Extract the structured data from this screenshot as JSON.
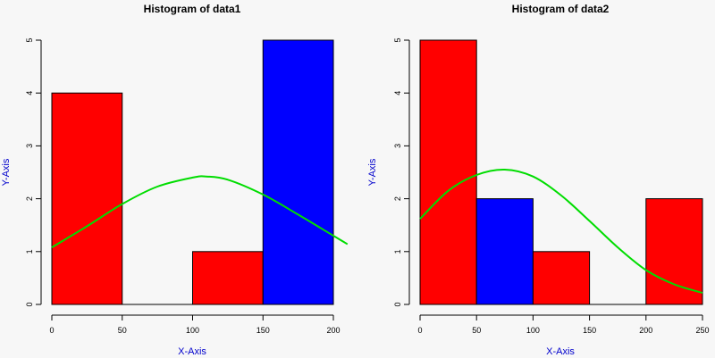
{
  "chart_data": [
    {
      "type": "bar",
      "title": "Histogram of data1",
      "xlabel": "X-Axis",
      "ylabel": "Y-Axis",
      "label_color": "#0000cc",
      "xlim": [
        0,
        200
      ],
      "ylim": [
        0,
        5
      ],
      "xticks": [
        0,
        50,
        100,
        150,
        200
      ],
      "yticks": [
        0,
        1,
        2,
        3,
        4,
        5
      ],
      "bins": [
        {
          "start": 0,
          "end": 50,
          "count": 4,
          "color": "#ff0000"
        },
        {
          "start": 50,
          "end": 100,
          "count": 0,
          "color": "#ff0000"
        },
        {
          "start": 100,
          "end": 150,
          "count": 1,
          "color": "#ff0000"
        },
        {
          "start": 150,
          "end": 200,
          "count": 5,
          "color": "#0000ff"
        }
      ],
      "curve": {
        "type": "line",
        "color": "#00dd00",
        "x": [
          0,
          25,
          50,
          75,
          100,
          110,
          125,
          150,
          175,
          200,
          210
        ],
        "y": [
          1.08,
          1.48,
          1.9,
          2.23,
          2.4,
          2.42,
          2.36,
          2.08,
          1.7,
          1.3,
          1.14
        ]
      }
    },
    {
      "type": "bar",
      "title": "Histogram of data2",
      "xlabel": "X-Axis",
      "ylabel": "Y-Axis",
      "label_color": "#0000cc",
      "xlim": [
        0,
        250
      ],
      "ylim": [
        0,
        5
      ],
      "xticks": [
        0,
        50,
        100,
        150,
        200,
        250
      ],
      "yticks": [
        0,
        1,
        2,
        3,
        4,
        5
      ],
      "bins": [
        {
          "start": 0,
          "end": 50,
          "count": 5,
          "color": "#ff0000"
        },
        {
          "start": 50,
          "end": 100,
          "count": 2,
          "color": "#0000ff"
        },
        {
          "start": 100,
          "end": 150,
          "count": 1,
          "color": "#ff0000"
        },
        {
          "start": 150,
          "end": 200,
          "count": 0,
          "color": "#ff0000"
        },
        {
          "start": 200,
          "end": 250,
          "count": 2,
          "color": "#ff0000"
        }
      ],
      "curve": {
        "type": "line",
        "color": "#00dd00",
        "x": [
          0,
          25,
          50,
          75,
          100,
          125,
          150,
          175,
          200,
          225,
          250
        ],
        "y": [
          1.62,
          2.15,
          2.45,
          2.55,
          2.42,
          2.06,
          1.58,
          1.08,
          0.65,
          0.38,
          0.22
        ]
      }
    }
  ]
}
